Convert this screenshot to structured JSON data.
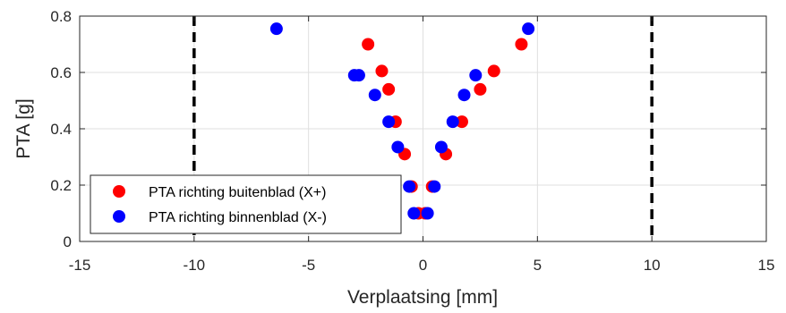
{
  "chart_data": {
    "type": "scatter",
    "xlabel": "Verplaatsing [mm]",
    "ylabel": "PTA [g]",
    "xlim": [
      -15,
      15
    ],
    "ylim": [
      0,
      0.8
    ],
    "x_ticks": [
      -15,
      -10,
      -5,
      0,
      5,
      10,
      15
    ],
    "y_ticks": [
      0,
      0.2,
      0.4,
      0.6,
      0.8
    ],
    "x_tick_labels": [
      "-15",
      "-10",
      "-5",
      "0",
      "5",
      "10",
      "15"
    ],
    "y_tick_labels": [
      "0",
      "0.2",
      "0.4",
      "0.6",
      "0.8"
    ],
    "grid": true,
    "legend_position": "bottom-left",
    "vertical_lines": [
      {
        "x": -10,
        "style": "dashed",
        "color": "#000000"
      },
      {
        "x": 10,
        "style": "dashed",
        "color": "#000000"
      }
    ],
    "series": [
      {
        "name": "PTA richting buitenblad (X+)",
        "color": "#ff0000",
        "points": [
          [
            -0.2,
            0.1
          ],
          [
            0.1,
            0.1
          ],
          [
            -0.5,
            0.195
          ],
          [
            0.4,
            0.195
          ],
          [
            -0.8,
            0.31
          ],
          [
            1.0,
            0.31
          ],
          [
            -1.2,
            0.425
          ],
          [
            1.7,
            0.425
          ],
          [
            -1.5,
            0.54
          ],
          [
            2.5,
            0.54
          ],
          [
            -1.8,
            0.605
          ],
          [
            3.1,
            0.605
          ],
          [
            -2.4,
            0.7
          ],
          [
            4.3,
            0.7
          ]
        ]
      },
      {
        "name": "PTA richting binnenblad (X-)",
        "color": "#0000ff",
        "points": [
          [
            -0.4,
            0.1
          ],
          [
            0.2,
            0.1
          ],
          [
            -0.6,
            0.195
          ],
          [
            0.5,
            0.195
          ],
          [
            -1.1,
            0.335
          ],
          [
            0.8,
            0.335
          ],
          [
            -1.5,
            0.425
          ],
          [
            1.3,
            0.425
          ],
          [
            -2.1,
            0.52
          ],
          [
            1.8,
            0.52
          ],
          [
            -3.0,
            0.59
          ],
          [
            -2.8,
            0.59
          ],
          [
            2.3,
            0.59
          ],
          [
            -6.4,
            0.755
          ],
          [
            4.6,
            0.755
          ]
        ]
      }
    ]
  }
}
